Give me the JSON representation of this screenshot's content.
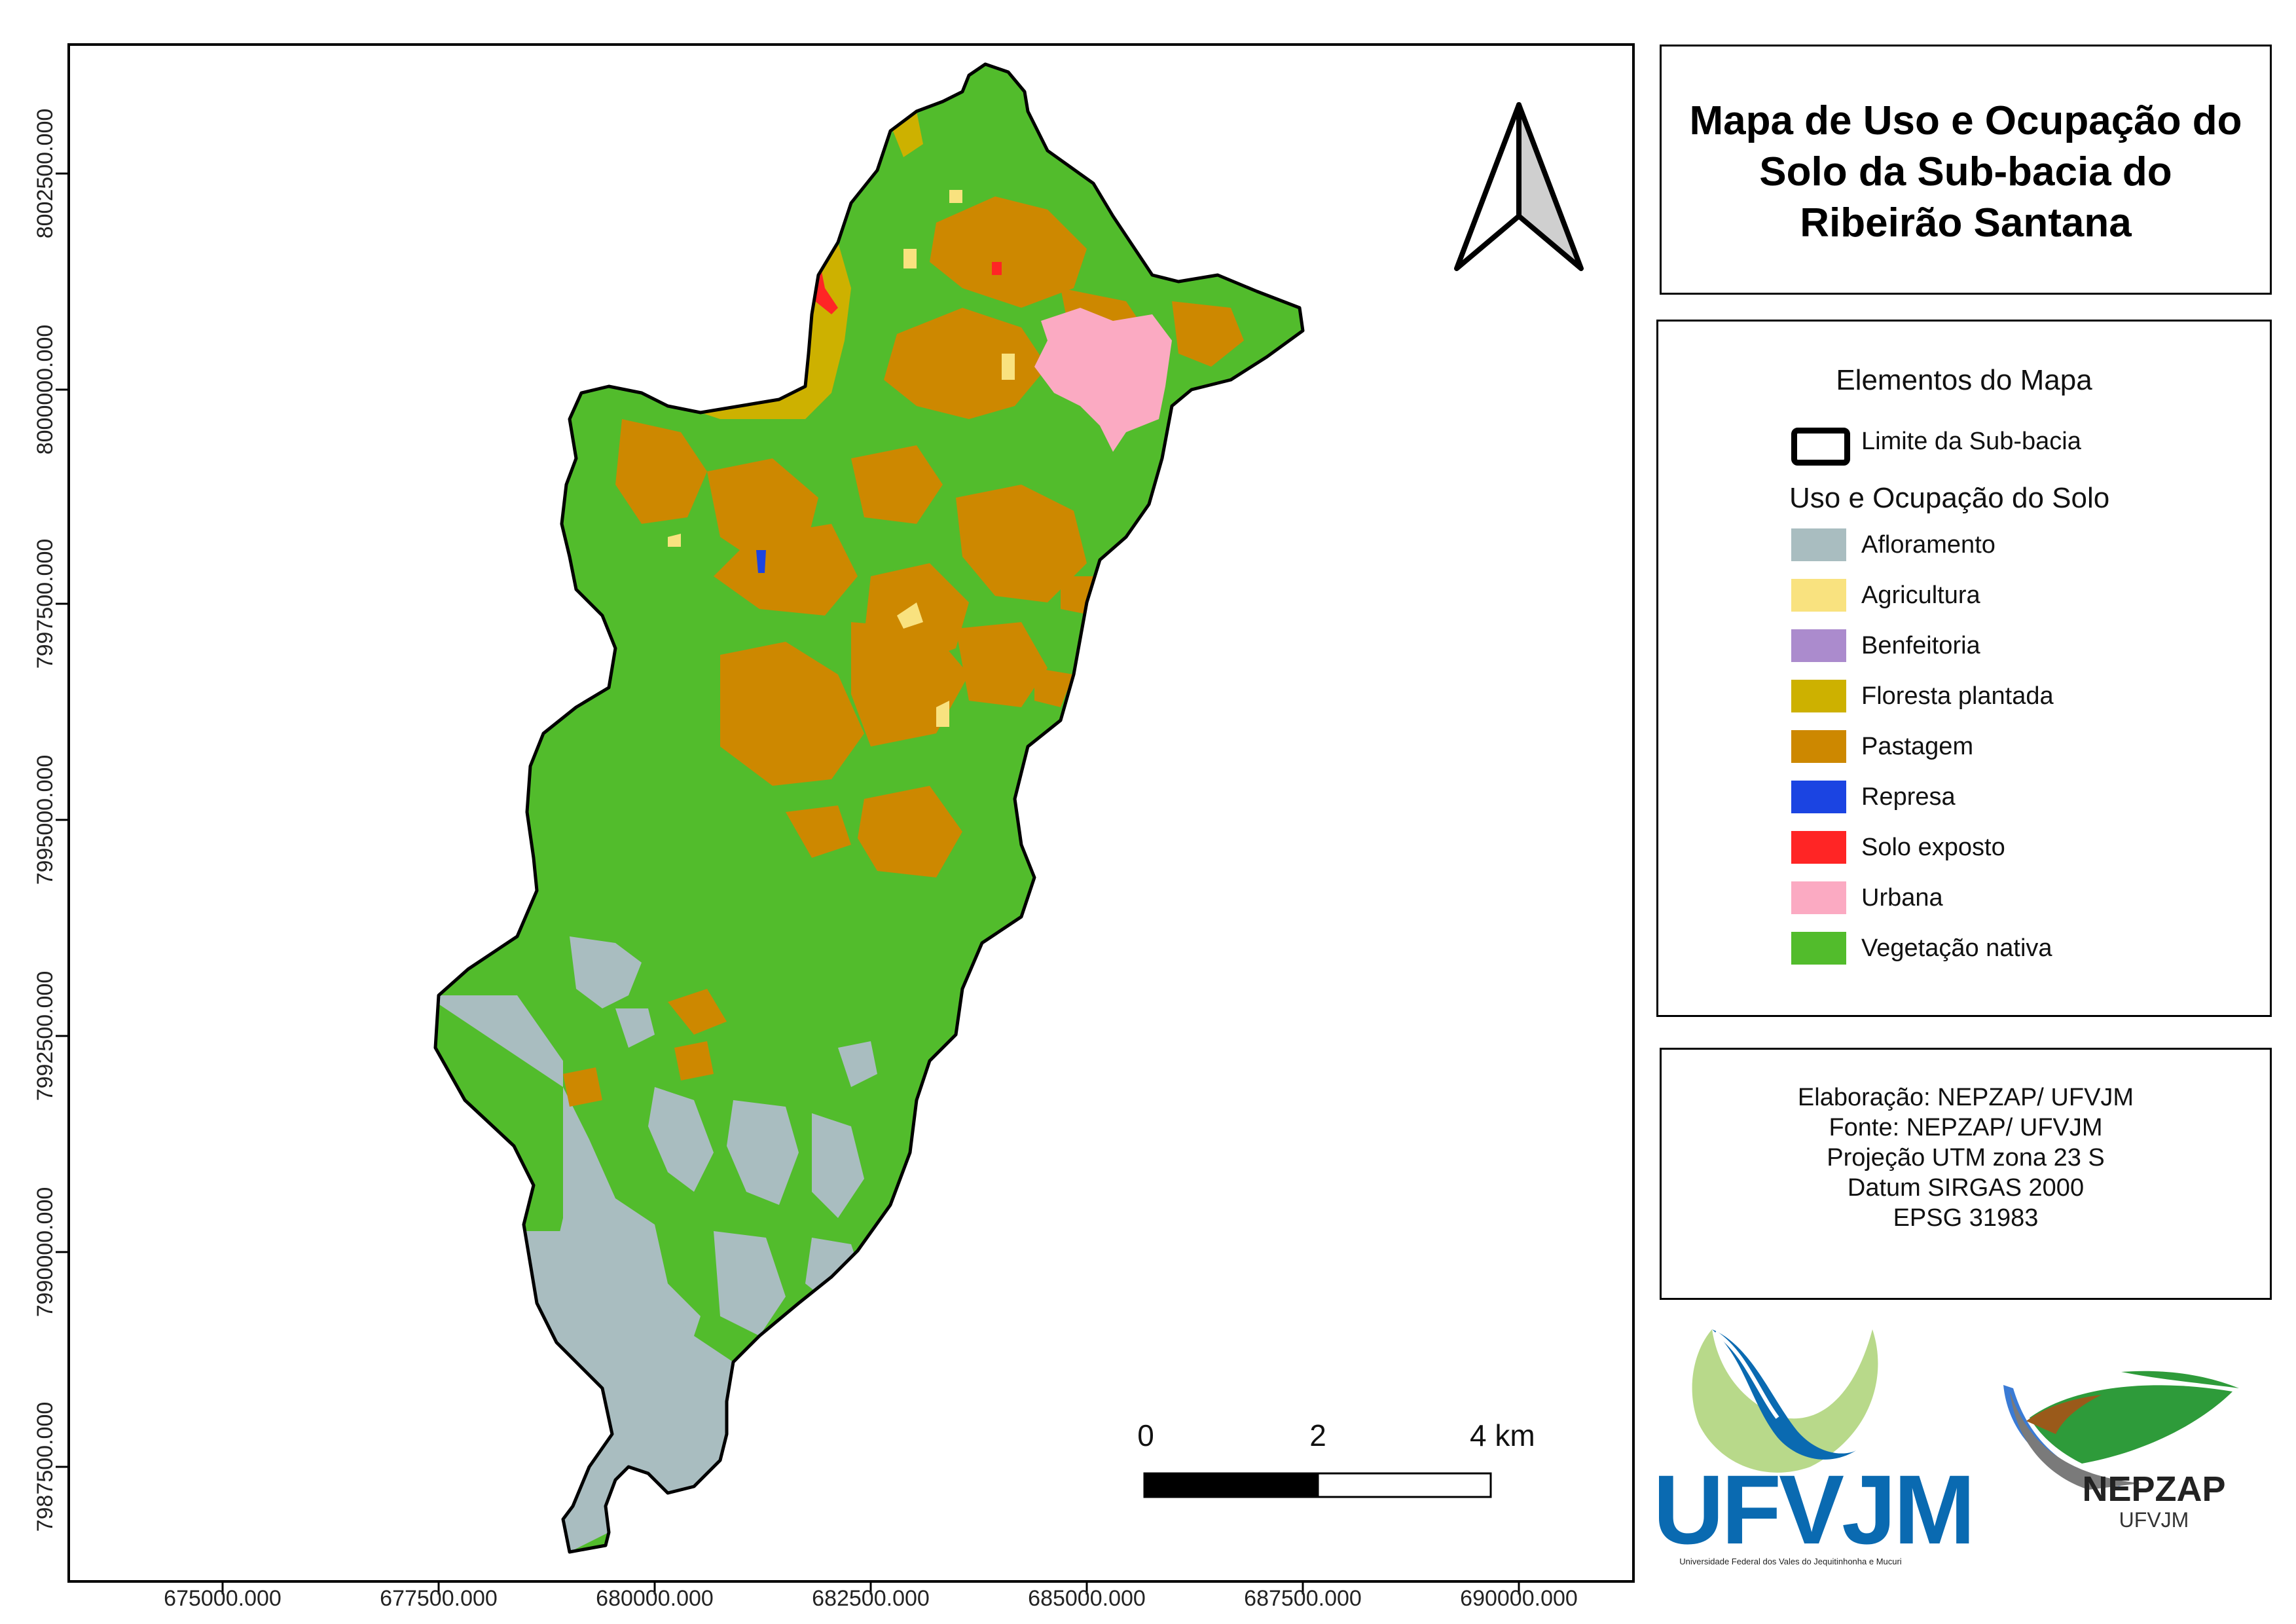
{
  "title": {
    "line1": "Mapa de  Uso e Ocupação do",
    "line2": "Solo da Sub-bacia do",
    "line3": "Ribeirão Santana"
  },
  "axes": {
    "x_ticks": [
      "675000.000",
      "677500.000",
      "680000.000",
      "682500.000",
      "685000.000",
      "687500.000",
      "690000.000"
    ],
    "y_ticks": [
      "8002500.000",
      "8000000.000",
      "7997500.000",
      "7995000.000",
      "7992500.000",
      "7990000.000",
      "7987500.000"
    ]
  },
  "legend": {
    "heading": "Elementos do Mapa",
    "boundary_label": "Limite da Sub-bacia",
    "section_label": "Uso e Ocupação do Solo",
    "classes": [
      {
        "label": "Afloramento",
        "color": "#a9bdc0"
      },
      {
        "label": "Agricultura",
        "color": "#f9e27f"
      },
      {
        "label": "Benfeitoria",
        "color": "#ab8bcd"
      },
      {
        "label": "Floresta plantada",
        "color": "#cdb100"
      },
      {
        "label": "Pastagem",
        "color": "#cd8800"
      },
      {
        "label": "Represa",
        "color": "#1b44e2"
      },
      {
        "label": "Solo exposto",
        "color": "#ff2525"
      },
      {
        "label": "Urbana",
        "color": "#fbaac2"
      },
      {
        "label": "Vegetação nativa",
        "color": "#52bc2c"
      }
    ]
  },
  "credits": {
    "line1": "Elaboração: NEPZAP/ UFVJM",
    "line2": "Fonte: NEPZAP/ UFVJM",
    "line3": "Projeção UTM zona 23 S",
    "line4": "Datum SIRGAS 2000",
    "line5": "EPSG 31983"
  },
  "scale_bar": {
    "label_0": "0",
    "label_2": "2",
    "label_4": "4 km"
  },
  "north_arrow": {
    "icon": "north-arrow-icon"
  },
  "logos": {
    "ufvjm_name": "UFVJM",
    "ufvjm_subtitle": "Universidade Federal dos Vales do Jequitinhonha e Mucuri",
    "nepzap_name": "NEPZAP",
    "nepzap_subtitle": "UFVJM"
  }
}
